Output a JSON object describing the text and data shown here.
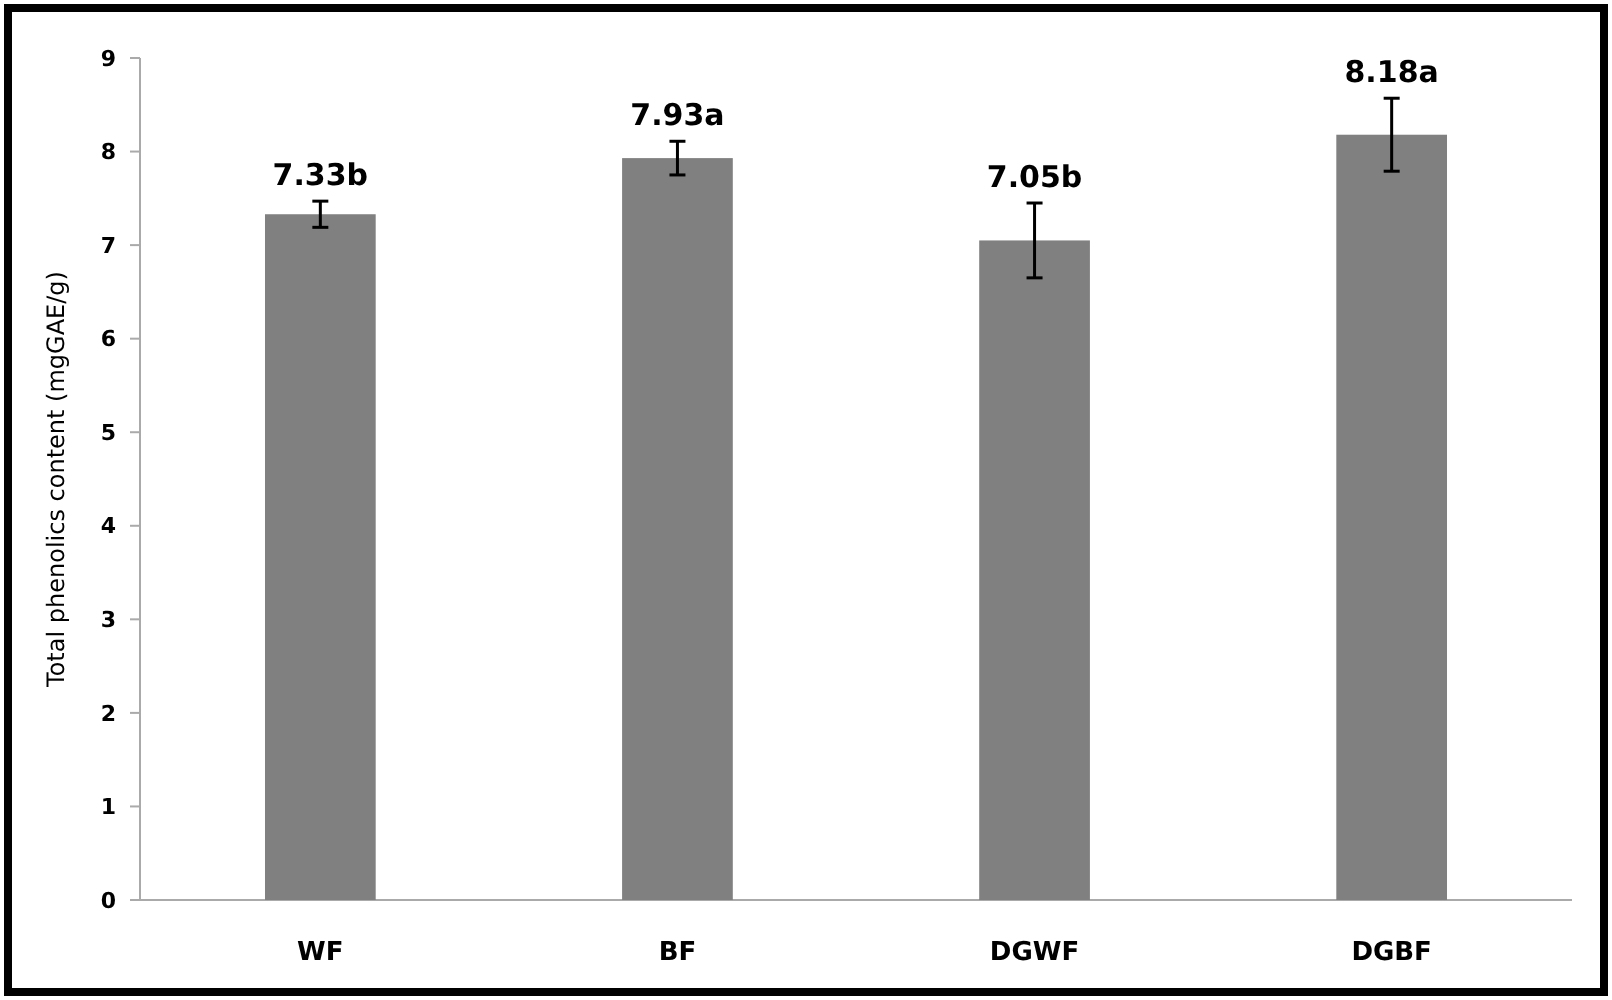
{
  "chart_data": {
    "type": "bar",
    "ylabel": "Total phenolics content (mgGAE/g)",
    "categories": [
      "WF",
      "BF",
      "DGWF",
      "DGBF"
    ],
    "values": [
      7.33,
      7.93,
      7.05,
      8.18
    ],
    "errors": [
      0.14,
      0.18,
      0.4,
      0.39
    ],
    "value_labels": [
      "7.33b",
      "7.93a",
      "7.05b",
      "8.18a"
    ],
    "color": "#808080",
    "ylim": [
      0,
      9
    ],
    "yticks": [
      0,
      1,
      2,
      3,
      4,
      5,
      6,
      7,
      8,
      9
    ],
    "grid": false
  }
}
